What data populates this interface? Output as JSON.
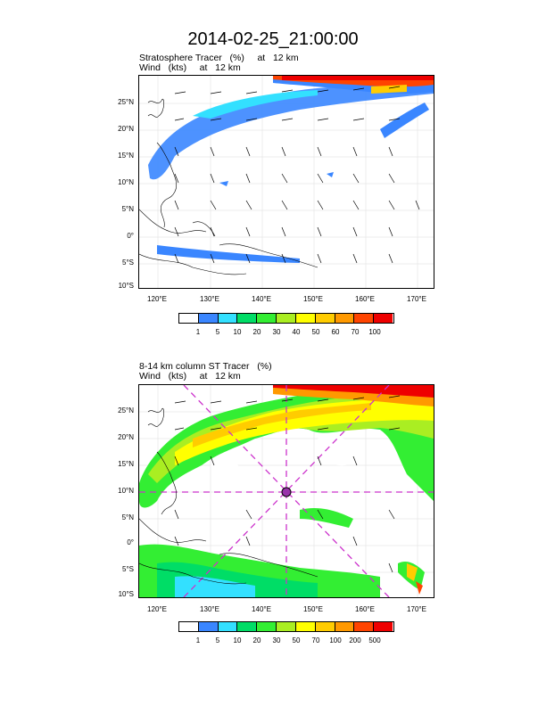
{
  "title": "2014-02-25_21:00:00",
  "panels": [
    {
      "id": "top",
      "subtitle_line1": "Stratosphere Tracer   (%)     at   12 km",
      "subtitle_line2": "Wind   (kts)     at   12 km",
      "lat_labels": [
        "25°N",
        "20°N",
        "15°N",
        "10°N",
        "5°N",
        "0°",
        "5°S",
        "10°S"
      ],
      "lon_labels": [
        "120°E",
        "130°E",
        "140°E",
        "150°E",
        "160°E",
        "170°E"
      ],
      "colorbar_labels": [
        "1",
        "5",
        "10",
        "20",
        "30",
        "40",
        "50",
        "60",
        "70",
        "100"
      ],
      "colorbar_colors": [
        "#ffffff",
        "#3a86ff",
        "#33e0ff",
        "#00dd66",
        "#33ee33",
        "#aaee22",
        "#ffff00",
        "#ffcc00",
        "#ff9900",
        "#ff4400",
        "#ee0000"
      ]
    },
    {
      "id": "bottom",
      "subtitle_line1": "8-14 km column ST Tracer   (%)",
      "subtitle_line2": "Wind   (kts)     at   12 km",
      "lat_labels": [
        "25°N",
        "20°N",
        "15°N",
        "10°N",
        "5°N",
        "0°",
        "5°S",
        "10°S"
      ],
      "lon_labels": [
        "120°E",
        "130°E",
        "140°E",
        "150°E",
        "160°E",
        "170°E"
      ],
      "colorbar_labels": [
        "1",
        "5",
        "10",
        "20",
        "30",
        "50",
        "70",
        "100",
        "200",
        "500"
      ],
      "colorbar_colors": [
        "#ffffff",
        "#3a86ff",
        "#33e0ff",
        "#00dd66",
        "#33ee33",
        "#aaee22",
        "#ffff00",
        "#ffcc00",
        "#ff9900",
        "#ff4400",
        "#ee0000"
      ]
    }
  ]
}
